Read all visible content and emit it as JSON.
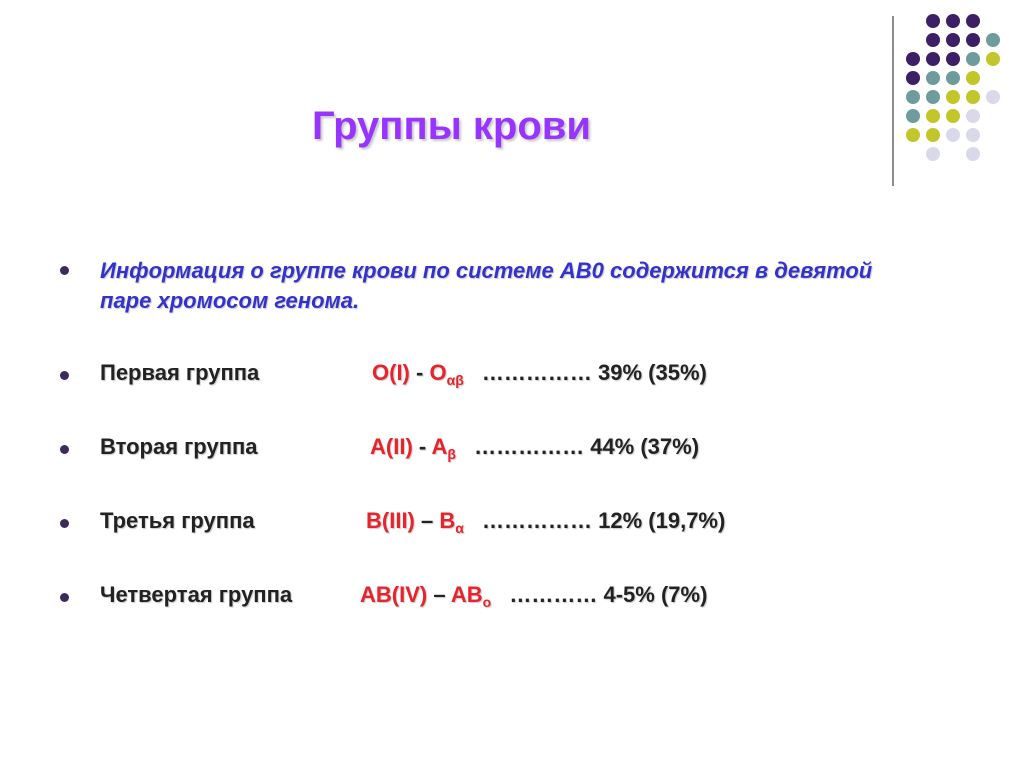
{
  "slide": {
    "title": "Группы крови",
    "intro": "Информация о группе крови по системе АВ0 содержится в девятой паре хромосом генома.",
    "rows": [
      {
        "label": "Первая группа",
        "code": "O(I)",
        "sep": "-",
        "antigen": "O",
        "sub": "αβ",
        "dots": "……………",
        "percent": "39% (35%)"
      },
      {
        "label": "Вторая группа",
        "code": "A(II)",
        "sep": "-",
        "antigen": "A",
        "sub": "β",
        "dots": "……………",
        "percent": "44% (37%)"
      },
      {
        "label": "Третья группа",
        "code": "B(III)",
        "sep": "–",
        "antigen": "B",
        "sub": "α",
        "dots": "……………",
        "percent": "12% (19,7%)"
      },
      {
        "label": "Четвертая группа",
        "code": "AB(IV)",
        "sep": "–",
        "antigen": "AB",
        "sub": "o",
        "dots": "…………",
        "percent": "4-5% (7%)"
      }
    ]
  },
  "colors": {
    "title": "#9933ff",
    "intro": "#3333cc",
    "highlight": "#e8232b",
    "dot_purple": "#3d1f66",
    "dot_teal": "#6e9c9c",
    "dot_lime": "#c2c62a",
    "dot_light": "#d9d9ea"
  }
}
